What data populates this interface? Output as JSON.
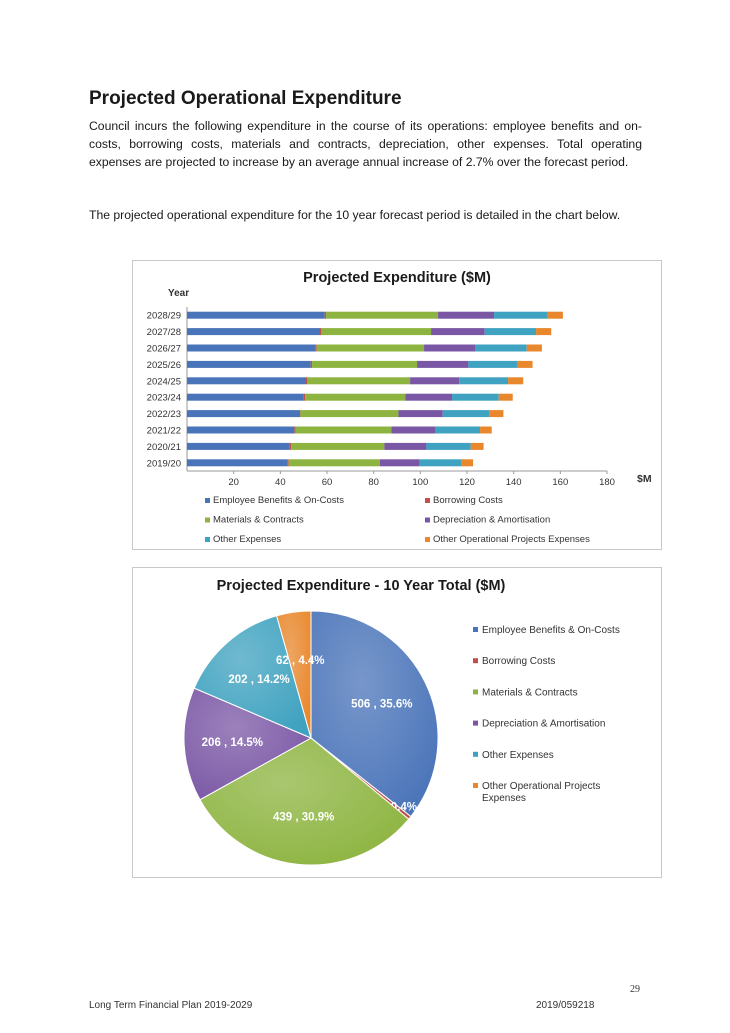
{
  "page": {
    "heading": "Projected Operational Expenditure",
    "paragraph1": "Council incurs the following expenditure in the course of its operations: employee benefits and on-costs, borrowing costs, materials and contracts, depreciation, other expenses. Total operating expenses are projected to increase by an average annual increase of 2.7% over the forecast period.",
    "paragraph2": "The projected operational expenditure for the 10 year forecast period is detailed in the chart below.",
    "page_number": "29",
    "footer_left": "Long Term Financial Plan 2019-2029",
    "footer_right": "2019/059218"
  },
  "chart_data": [
    {
      "type": "bar",
      "orientation": "horizontal",
      "stacked": true,
      "title": "Projected Expenditure ($M)",
      "ylabel": "Year",
      "xlabel": "$M",
      "xlim": [
        0,
        180
      ],
      "xticks": [
        20,
        40,
        60,
        80,
        100,
        120,
        140,
        160,
        180
      ],
      "grid": false,
      "legend_position": "bottom",
      "categories": [
        "2019/20",
        "2020/21",
        "2021/22",
        "2022/23",
        "2023/24",
        "2024/25",
        "2025/26",
        "2026/27",
        "2027/28",
        "2028/29"
      ],
      "series": [
        {
          "name": "Employee Benefits & On-Costs",
          "color": "#4a74b9",
          "values": [
            43,
            44,
            46,
            48,
            50,
            51,
            53,
            55,
            57,
            59
          ]
        },
        {
          "name": "Borrowing Costs",
          "color": "#c0504d",
          "values": [
            0.6,
            0.6,
            0.6,
            0.6,
            0.6,
            0.6,
            0.6,
            0.6,
            0.6,
            0.6
          ]
        },
        {
          "name": "Materials & Contracts",
          "color": "#8db440",
          "values": [
            39,
            40,
            41,
            42,
            43,
            44,
            45,
            46,
            47,
            48
          ]
        },
        {
          "name": "Depreciation & Amortisation",
          "color": "#7a57a5",
          "values": [
            17,
            18,
            19,
            19,
            20,
            21,
            22,
            22,
            23,
            24
          ]
        },
        {
          "name": "Other Expenses",
          "color": "#3fa2c0",
          "values": [
            18,
            19,
            19,
            20,
            20,
            21,
            21,
            22,
            22,
            23
          ]
        },
        {
          "name": "Other Operational Projects Expenses",
          "color": "#e8872c",
          "values": [
            5,
            5.5,
            5,
            6,
            6,
            6.5,
            6.5,
            6.5,
            6.5,
            6.5
          ]
        }
      ]
    },
    {
      "type": "pie",
      "title": "Projected Expenditure - 10 Year Total ($M)",
      "legend_position": "right",
      "slices": [
        {
          "name": "Employee Benefits & On-Costs",
          "value": 506,
          "percent": 35.6,
          "label": "506 , 35.6%",
          "color": "#4a74b9"
        },
        {
          "name": "Borrowing Costs",
          "value": 6,
          "percent": 0.4,
          "label": "6 , 0.4%",
          "color": "#c0504d"
        },
        {
          "name": "Materials & Contracts",
          "value": 439,
          "percent": 30.9,
          "label": "439 , 30.9%",
          "color": "#8db440"
        },
        {
          "name": "Depreciation & Amortisation",
          "value": 206,
          "percent": 14.5,
          "label": "206 , 14.5%",
          "color": "#7a57a5"
        },
        {
          "name": "Other Expenses",
          "value": 202,
          "percent": 14.2,
          "label": "202 , 14.2%",
          "color": "#3fa2c0"
        },
        {
          "name": "Other Operational Projects Expenses",
          "value": 62,
          "percent": 4.4,
          "label": "62 , 4.4%",
          "color": "#e8872c"
        }
      ]
    }
  ]
}
